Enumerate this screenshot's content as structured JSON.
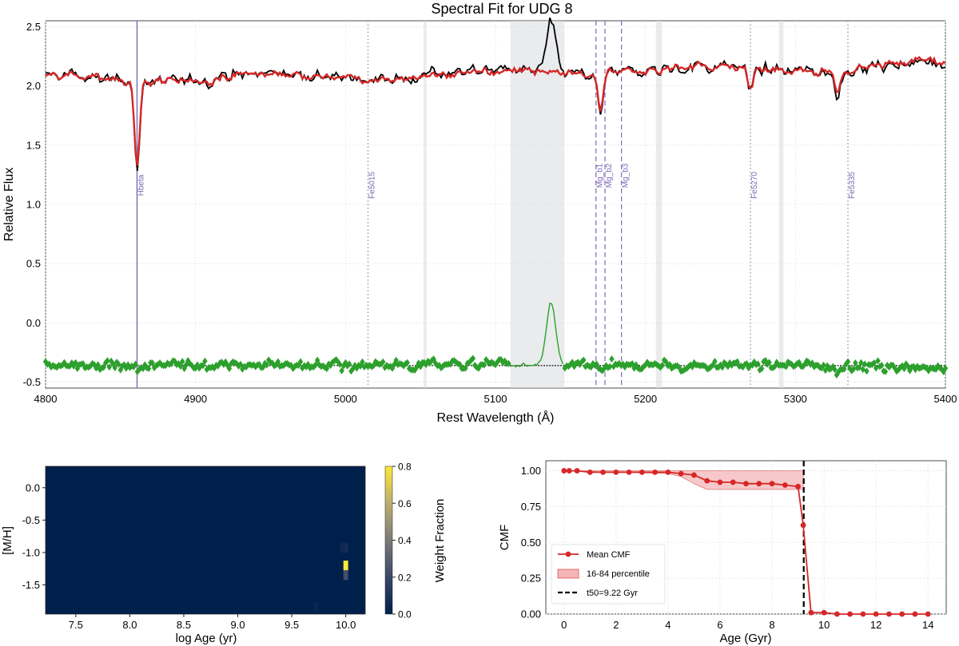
{
  "chart_data": [
    {
      "type": "line",
      "title": "Spectral Fit for UDG 8",
      "xlabel": "Rest Wavelength (Å)",
      "ylabel": "Relative Flux",
      "xlim": [
        4800,
        5400
      ],
      "ylim": [
        -0.55,
        2.55
      ],
      "xticks": [
        "4800",
        "4900",
        "5000",
        "5100",
        "5200",
        "5300",
        "5400"
      ],
      "yticks": [
        "-0.5",
        "0.0",
        "0.5",
        "1.0",
        "1.5",
        "2.0",
        "2.5"
      ],
      "grid": true,
      "colors": {
        "data": "#000000",
        "model": "#d62728",
        "residual": "#2ca02c",
        "line_marker": "#7b68b5",
        "mask": "#d9dade"
      },
      "series": [
        {
          "key": "data",
          "role": "observed spectrum",
          "style": "black line"
        },
        {
          "key": "model",
          "role": "best-fit model",
          "style": "red line"
        },
        {
          "key": "residual",
          "role": "residuals (offset)",
          "style": "green diamonds / line in masked region",
          "baseline": -0.36
        }
      ],
      "masked_regions": [
        [
          5110,
          5146
        ],
        [
          5052,
          5054
        ],
        [
          5207,
          5211
        ],
        [
          5289,
          5292
        ]
      ],
      "emission_feature": {
        "center": 5137,
        "data_peak": 2.52,
        "residual_peak": 0.18
      },
      "line_markers": [
        {
          "label": "Hbeta",
          "x": 4861,
          "style": "solid"
        },
        {
          "label": "Fe5015",
          "x": 5015,
          "style": "dotted"
        },
        {
          "label": "Mg_b1",
          "x": 5167,
          "style": "dashed"
        },
        {
          "label": "Mg_b2",
          "x": 5173,
          "style": "dashed"
        },
        {
          "label": "Mg_b3",
          "x": 5184,
          "style": "dashed"
        },
        {
          "label": "Fe5270",
          "x": 5270,
          "style": "dotted"
        },
        {
          "label": "Fe5335",
          "x": 5335,
          "style": "dotted"
        }
      ],
      "absorption_features": [
        {
          "x": 4861,
          "depth_data": 0.75,
          "depth_model": 0.72
        },
        {
          "x": 5170,
          "depth_data": 0.32,
          "depth_model": 0.3
        },
        {
          "x": 5270,
          "depth_data": 0.2,
          "depth_model": 0.18
        },
        {
          "x": 5328,
          "depth_data": 0.25,
          "depth_model": 0.2
        }
      ]
    },
    {
      "type": "heatmap",
      "xlabel": "log Age (yr)",
      "ylabel": "[M/H]",
      "xlim": [
        7.22,
        10.18
      ],
      "ylim": [
        -1.95,
        0.33
      ],
      "xticks": [
        "7.5",
        "8.0",
        "8.5",
        "9.0",
        "9.5",
        "10.0"
      ],
      "yticks": [
        "-1.5",
        "-1.0",
        "-0.5",
        "0.0"
      ],
      "colorbar": {
        "label": "Weight Fraction",
        "min": 0.0,
        "max": 0.8,
        "ticks": [
          "0.0",
          "0.2",
          "0.4",
          "0.6",
          "0.8"
        ],
        "colormap": "cividis"
      },
      "cells": [
        {
          "logage": 10.0,
          "mh": -1.2,
          "weight": 0.8
        },
        {
          "logage": 10.0,
          "mh": -1.35,
          "weight": 0.22
        },
        {
          "logage": 10.0,
          "mh": -0.93,
          "weight": 0.07
        },
        {
          "logage": 9.97,
          "mh": -0.93,
          "weight": 0.05
        },
        {
          "logage": 9.72,
          "mh": -1.85,
          "weight": 0.03
        }
      ]
    },
    {
      "type": "line",
      "xlabel": "Age (Gyr)",
      "ylabel": "CMF",
      "xlim": [
        -0.7,
        14.7
      ],
      "ylim": [
        0.0,
        1.07
      ],
      "xticks": [
        "0",
        "2",
        "4",
        "6",
        "8",
        "10",
        "12",
        "14"
      ],
      "yticks": [
        "0.00",
        "0.25",
        "0.50",
        "0.75",
        "1.00"
      ],
      "grid": true,
      "legend_position": "lower-left",
      "series": [
        {
          "name": "Mean CMF",
          "x": [
            0.0,
            0.2,
            0.5,
            1.0,
            1.5,
            2.0,
            2.5,
            3.0,
            3.5,
            4.0,
            4.5,
            5.0,
            5.5,
            6.0,
            6.5,
            7.0,
            7.5,
            8.0,
            8.5,
            9.0,
            9.2,
            9.5,
            10.0,
            10.5,
            11.0,
            11.5,
            12.0,
            12.5,
            13.0,
            13.5,
            14.0
          ],
          "y": [
            1.0,
            1.0,
            1.0,
            0.99,
            0.99,
            0.99,
            0.99,
            0.99,
            0.99,
            0.99,
            0.98,
            0.97,
            0.93,
            0.92,
            0.92,
            0.91,
            0.91,
            0.91,
            0.9,
            0.89,
            0.62,
            0.01,
            0.01,
            0.0,
            0.0,
            0.0,
            0.0,
            0.0,
            0.0,
            0.0,
            0.0
          ]
        },
        {
          "name": "16-84 percentile",
          "x": [
            0.0,
            4.0,
            4.5,
            5.0,
            5.5,
            6.0,
            7.0,
            8.0,
            9.0,
            9.2
          ],
          "lower": [
            1.0,
            0.98,
            0.96,
            0.91,
            0.87,
            0.87,
            0.87,
            0.87,
            0.87,
            0.87
          ],
          "upper": [
            1.0,
            1.0,
            1.0,
            1.0,
            1.0,
            1.0,
            1.0,
            1.0,
            1.0,
            1.0
          ]
        },
        {
          "name": "t50=9.22 Gyr",
          "x": 9.22
        }
      ],
      "colors": {
        "mean": "#d62728",
        "band": "#f4b6b8",
        "t50": "#000000"
      }
    }
  ]
}
